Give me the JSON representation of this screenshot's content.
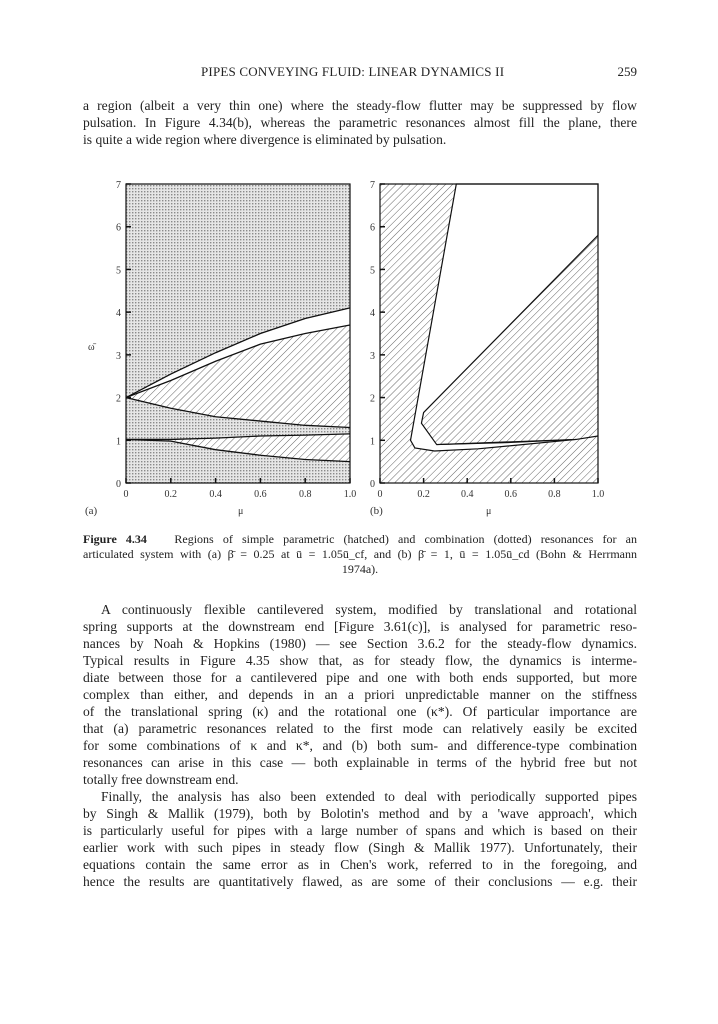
{
  "header": {
    "running_title": "PIPES CONVEYING FLUID: LINEAR DYNAMICS II",
    "page_number": "259"
  },
  "paragraph1": [
    "a region (albeit a very thin one) where the steady-flow flutter may be suppressed by flow",
    "pulsation. In Figure 4.34(b), whereas the parametric resonances almost fill the plane, there",
    "is quite a wide region where divergence is eliminated by pulsation."
  ],
  "figure": {
    "panel_a_label": "(a)",
    "panel_b_label": "(b)",
    "caption_label": "Figure 4.34",
    "caption_lines": [
      "Regions of simple parametric (hatched) and combination (dotted) resonances for an",
      "articulated system with (a) β̄ = 0.25 at ū = 1.05ū_cf, and (b) β̄ = 1, ū = 1.05ū_cd (Bohn & Herrmann",
      "1974a)."
    ]
  },
  "chart_data": [
    {
      "type": "area",
      "panel": "(a)",
      "xlabel": "μ",
      "ylabel": "ω̄",
      "xlim": [
        0,
        1
      ],
      "ylim": [
        0,
        7
      ],
      "x_ticks": [
        "0",
        "0.2",
        "0.4",
        "0.6",
        "0.8",
        "1.0"
      ],
      "y_ticks": [
        "0",
        "1",
        "2",
        "3",
        "4",
        "5",
        "6",
        "7"
      ],
      "background_fill": "dotted",
      "x": [
        0,
        0.2,
        0.4,
        0.6,
        0.8,
        1.0
      ],
      "curves": [
        {
          "role": "upper-boundary",
          "y": [
            2.0,
            2.55,
            3.05,
            3.5,
            3.85,
            4.1
          ]
        },
        {
          "role": "hatched-top",
          "y": [
            2.0,
            2.4,
            2.85,
            3.25,
            3.5,
            3.7
          ]
        },
        {
          "role": "hatched-bottom",
          "y": [
            2.0,
            1.75,
            1.55,
            1.45,
            1.35,
            1.3
          ]
        },
        {
          "role": "band-top",
          "y": [
            1.02,
            1.02,
            1.05,
            1.1,
            1.12,
            1.15
          ]
        },
        {
          "role": "band-bottom",
          "y": [
            1.02,
            0.98,
            0.78,
            0.65,
            0.55,
            0.5
          ]
        }
      ],
      "regions": [
        {
          "fill": "white",
          "between": [
            "upper-boundary",
            "hatched-top"
          ]
        },
        {
          "fill": "hatched",
          "between": [
            "hatched-top",
            "hatched-bottom"
          ]
        },
        {
          "fill": "hatched",
          "between": [
            "band-top",
            "band-bottom"
          ]
        }
      ]
    },
    {
      "type": "area",
      "panel": "(b)",
      "xlabel": "μ",
      "xlim": [
        0,
        1
      ],
      "ylim": [
        0,
        7
      ],
      "x_ticks": [
        "0",
        "0.2",
        "0.4",
        "0.6",
        "0.8",
        "1.0"
      ],
      "y_ticks": [
        "0",
        "1",
        "2",
        "3",
        "4",
        "5",
        "6",
        "7"
      ],
      "background_fill": "hatched",
      "stable_region_boundary": [
        [
          0.35,
          7
        ],
        [
          1.0,
          7
        ],
        [
          1.0,
          5.8
        ],
        [
          0.2,
          1.65
        ],
        [
          0.19,
          1.4
        ],
        [
          0.26,
          0.9
        ],
        [
          0.9,
          1.02
        ],
        [
          0.45,
          0.8
        ],
        [
          0.25,
          0.75
        ],
        [
          0.16,
          0.82
        ],
        [
          0.14,
          1.0
        ]
      ],
      "extra_curve": [
        [
          0.26,
          0.9
        ],
        [
          0.6,
          0.95
        ],
        [
          0.9,
          1.02
        ],
        [
          1.0,
          1.1
        ]
      ]
    }
  ],
  "paragraph2": [
    "A continuously flexible cantilevered system, modified by translational and rotational",
    "spring supports at the downstream end [Figure 3.61(c)], is analysed for parametric reso-",
    "nances by Noah & Hopkins (1980) — see Section 3.6.2 for the steady-flow dynamics.",
    "Typical results in Figure 4.35 show that, as for steady flow, the dynamics is interme-",
    "diate between those for a cantilevered pipe and one with both ends supported, but more",
    "complex than either, and depends in an a priori unpredictable manner on the stiffness",
    "of the translational spring (κ) and the rotational one (κ*). Of particular importance are",
    "that (a) parametric resonances related to the first mode can relatively easily be excited",
    "for some combinations of κ and κ*, and (b) both sum- and difference-type combination",
    "resonances can arise in this case — both explainable in terms of the hybrid free but not",
    "totally free downstream end."
  ],
  "paragraph3": [
    "Finally, the analysis has also been extended to deal with periodically supported pipes",
    "by Singh & Mallik (1979), both by Bolotin's method and by a 'wave approach', which",
    "is particularly useful for pipes with a large number of spans and which is based on their",
    "earlier work with such pipes in steady flow (Singh & Mallik 1977). Unfortunately, their",
    "equations contain the same error as in Chen's work, referred to in the foregoing, and",
    "hence the results are quantitatively flawed, as are some of their conclusions — e.g. their"
  ]
}
